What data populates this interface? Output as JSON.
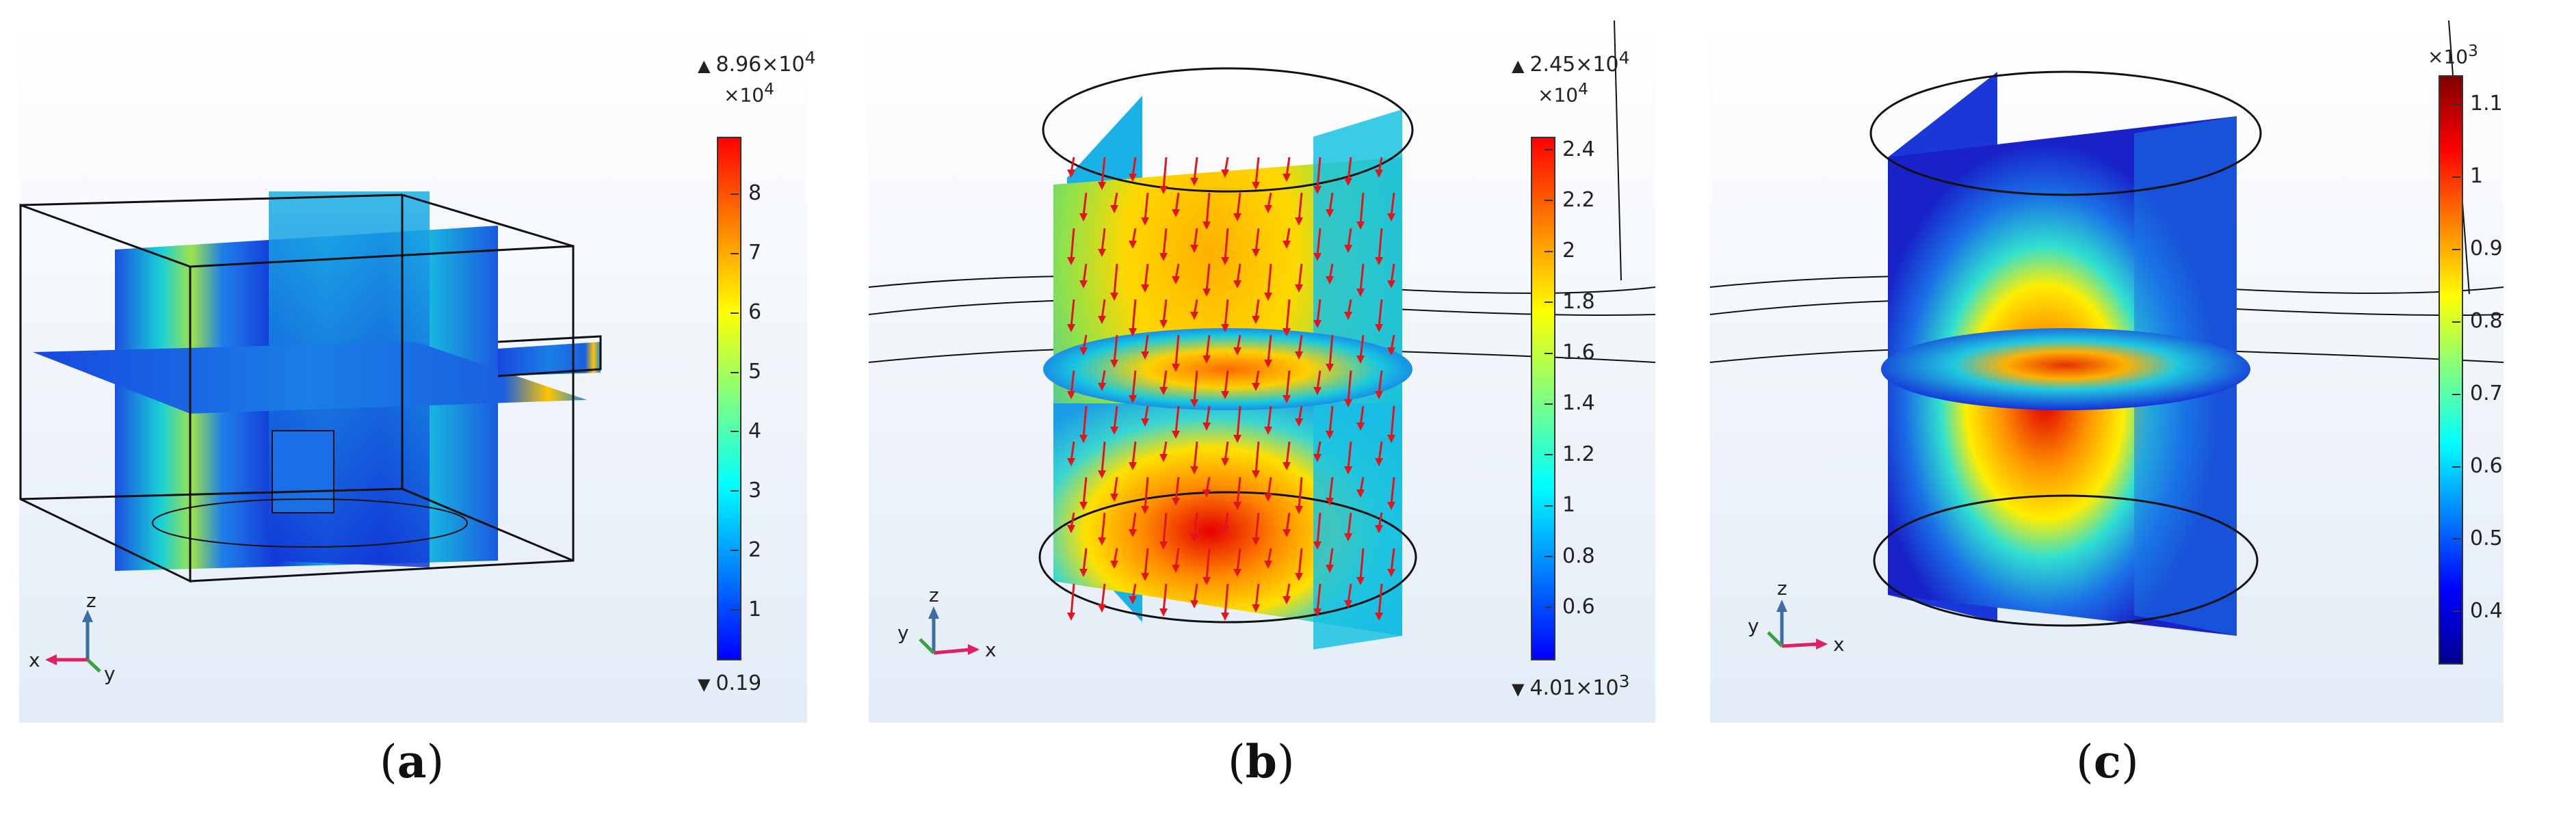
{
  "panels": [
    {
      "label": "a",
      "colorbar": {
        "max": "8.96×10",
        "max_exp": "4",
        "multiplier": "×10",
        "multiplier_exp": "4",
        "min": "0.19",
        "ticks": [
          "8",
          "7",
          "6",
          "5",
          "4",
          "3",
          "2",
          "1"
        ],
        "tick_range": [
          0.19,
          8.96
        ]
      },
      "axes": {
        "z": "z",
        "x": "x",
        "y": "y"
      }
    },
    {
      "label": "b",
      "colorbar": {
        "max": "2.45×10",
        "max_exp": "4",
        "multiplier": "×10",
        "multiplier_exp": "4",
        "min": "4.01×10",
        "min_exp": "3",
        "ticks": [
          "2.4",
          "2.2",
          "2",
          "1.8",
          "1.6",
          "1.4",
          "1.2",
          "1",
          "0.8",
          "0.6"
        ],
        "tick_range": [
          0.401,
          2.45
        ]
      },
      "axes": {
        "z": "z",
        "x": "x",
        "y": "y"
      }
    },
    {
      "label": "c",
      "colorbar": {
        "multiplier": "×10",
        "multiplier_exp": "3",
        "ticks": [
          "1.1",
          "1",
          "0.9",
          "0.8",
          "0.7",
          "0.6",
          "0.5",
          "0.4"
        ],
        "tick_range": [
          0.33,
          1.14
        ]
      },
      "axes": {
        "z": "z",
        "x": "x",
        "y": "y"
      }
    }
  ],
  "colors": {
    "jet": [
      "#00008f",
      "#0000ff",
      "#0080ff",
      "#00ffff",
      "#80ff80",
      "#ffff00",
      "#ff8000",
      "#ff0000",
      "#800000"
    ],
    "rainbow": [
      "#2b1bd6",
      "#0088ff",
      "#19d9d9",
      "#8fef3a",
      "#ffff00",
      "#ff9900",
      "#e60000"
    ],
    "arrow": "#e0161e"
  }
}
